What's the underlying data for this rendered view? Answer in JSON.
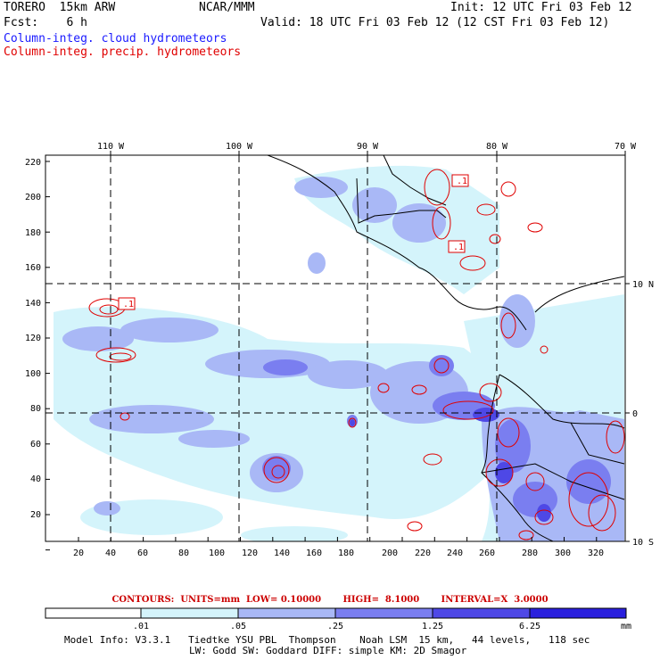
{
  "header": {
    "model": "TORERO  15km ARW",
    "org": "NCAR/MMM",
    "init": "Init: 12 UTC Fri 03 Feb 12",
    "fcst": "Fcst:    6 h",
    "valid": "Valid: 18 UTC Fri 03 Feb 12 (12 CST Fri 03 Feb 12)",
    "field1": "Column-integ. cloud hydrometeors",
    "field2": "Column-integ. precip. hydrometeors",
    "field1_color": "#1a1aff",
    "field2_color": "#e00000"
  },
  "map": {
    "lon_labels": [
      "110 W",
      "100 W",
      "90 W",
      "80 W",
      "70 W"
    ],
    "lat_labels": [
      "10 N",
      "0",
      "10 S"
    ],
    "y_ticks": [
      "220",
      "200",
      "180",
      "160",
      "140",
      "120",
      "100",
      "80",
      "60",
      "40",
      "20"
    ],
    "x_ticks": [
      "20",
      "40",
      "60",
      "80",
      "100",
      "120",
      "140",
      "160",
      "180",
      "200",
      "220",
      "240",
      "260",
      "280",
      "300",
      "320"
    ],
    "contour_labels": [
      ".1",
      ".1",
      ".1"
    ]
  },
  "contour_info": "CONTOURS:  UNITS=mm  LOW= 0.10000       HIGH=  8.1000       INTERVAL=X  3.0000",
  "colorbar": {
    "labels": [
      ".01",
      ".05",
      ".25",
      "1.25",
      "6.25"
    ],
    "units": "mm",
    "colors": [
      "#ffffff",
      "#d4f4fb",
      "#a9b8f6",
      "#7a7ef0",
      "#4e48e6",
      "#2a20dd"
    ]
  },
  "model_info": {
    "line1": "Model Info: V3.3.1   Tiedtke YSU PBL  Thompson    Noah LSM  15 km,   44 levels,   118 sec",
    "line2": "LW: Godd SW: Goddard DIFF: simple KM: 2D Smagor"
  }
}
